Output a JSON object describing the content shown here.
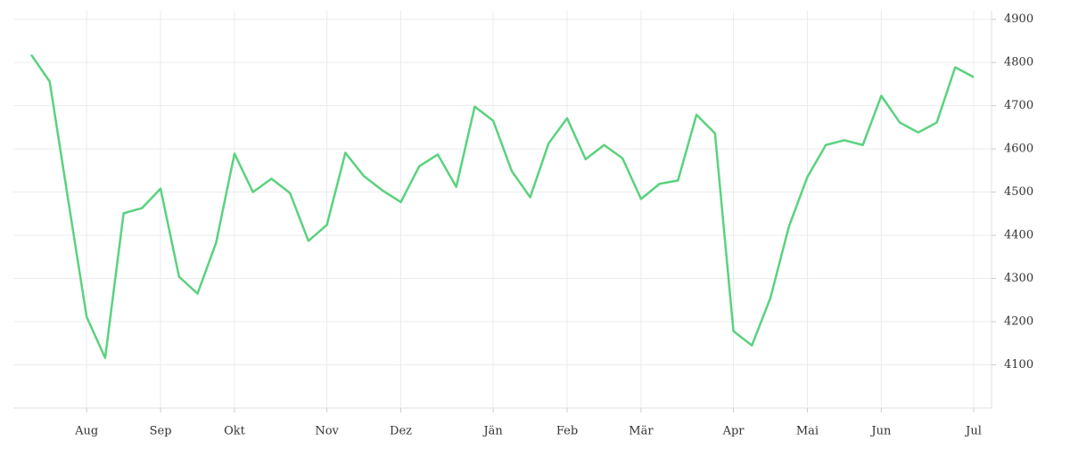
{
  "chart_data": {
    "type": "line",
    "categories": [
      null,
      null,
      null,
      "Aug",
      null,
      null,
      null,
      "Sep",
      null,
      null,
      null,
      "Okt",
      null,
      null,
      null,
      null,
      "Nov",
      null,
      null,
      null,
      "Dez",
      null,
      null,
      null,
      null,
      "Jän",
      null,
      null,
      null,
      "Feb",
      null,
      null,
      null,
      "Mär",
      null,
      null,
      null,
      null,
      "Apr",
      null,
      null,
      null,
      "Mai",
      null,
      null,
      null,
      "Jun",
      null,
      null,
      null,
      null,
      "Jul"
    ],
    "series": [
      {
        "color": "#5ad27f",
        "values": [
          4818,
          4756,
          4482,
          4211,
          4116,
          4451,
          4463,
          4508,
          4304,
          4265,
          4382,
          4589,
          4500,
          4531,
          4498,
          4387,
          4424,
          4591,
          4537,
          4504,
          4477,
          4560,
          4587,
          4512,
          4698,
          4665,
          4549,
          4488,
          4613,
          4671,
          4576,
          4609,
          4578,
          4484,
          4519,
          4527,
          4679,
          4636,
          4178,
          4145,
          4255,
          4420,
          4535,
          4609,
          4620,
          4609,
          4723,
          4661,
          4638,
          4661,
          4789,
          4766
        ]
      }
    ],
    "ylim": [
      4000,
      4920
    ],
    "yticks": [
      4100,
      4200,
      4300,
      4400,
      4500,
      4600,
      4700,
      4800,
      4900
    ],
    "grid": true
  }
}
